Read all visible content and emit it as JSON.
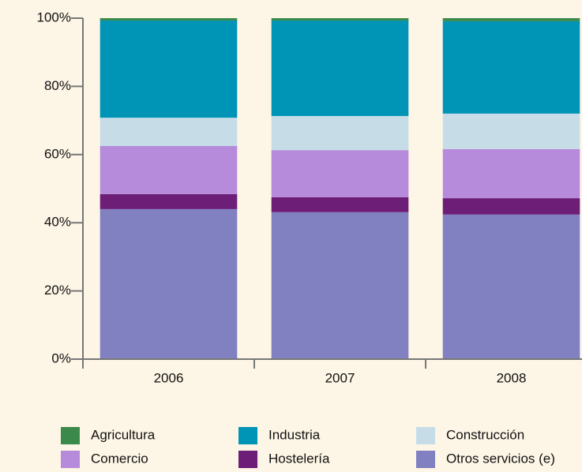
{
  "chart_data": {
    "type": "stacked_bar",
    "categories": [
      "2006",
      "2007",
      "2008"
    ],
    "series": [
      {
        "name": "Agricultura",
        "color": "#3b8a4b",
        "values": [
          0.7,
          0.7,
          0.9
        ]
      },
      {
        "name": "Industria",
        "color": "#0095b6",
        "values": [
          28.5,
          28.0,
          27.1
        ]
      },
      {
        "name": "Construcción",
        "color": "#c6dde8",
        "values": [
          8.3,
          10.0,
          10.4
        ]
      },
      {
        "name": "Comercio",
        "color": "#b78bdb",
        "values": [
          14.1,
          13.8,
          14.4
        ]
      },
      {
        "name": "Hostelería",
        "color": "#6d1e77",
        "values": [
          4.4,
          4.4,
          4.8
        ]
      },
      {
        "name": "Otros servicios (e)",
        "color": "#8181c1",
        "values": [
          44.0,
          43.1,
          42.4
        ]
      }
    ],
    "ylim": [
      0,
      100
    ],
    "yticks": [
      {
        "value": 0,
        "label": "0%"
      },
      {
        "value": 20,
        "label": "20%"
      },
      {
        "value": 40,
        "label": "40%"
      },
      {
        "value": 60,
        "label": "60%"
      },
      {
        "value": 80,
        "label": "80%"
      },
      {
        "value": 100,
        "label": "100%"
      }
    ]
  }
}
